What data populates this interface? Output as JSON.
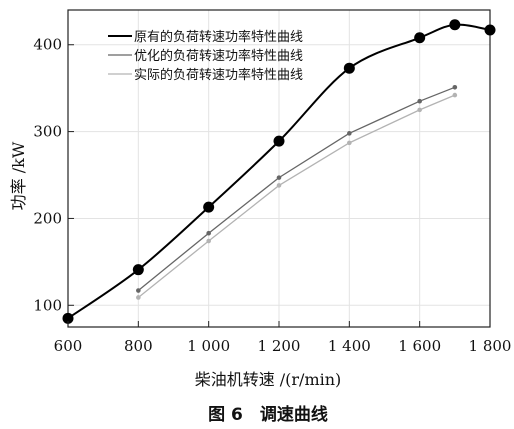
{
  "chart_data": {
    "type": "line",
    "title": "",
    "caption": "图 6　调速曲线",
    "xlabel": "柴油机转速 /(r/min)",
    "ylabel": "功率 /kW",
    "xlim": [
      600,
      1800
    ],
    "ylim": [
      75,
      440
    ],
    "x_ticks": [
      {
        "value": 600,
        "label": "600"
      },
      {
        "value": 800,
        "label": "800"
      },
      {
        "value": 1000,
        "label": "1 000"
      },
      {
        "value": 1200,
        "label": "1 200"
      },
      {
        "value": 1400,
        "label": "1 400"
      },
      {
        "value": 1600,
        "label": "1 600"
      },
      {
        "value": 1800,
        "label": "1 800"
      }
    ],
    "y_ticks": [
      {
        "value": 100,
        "label": "100"
      },
      {
        "value": 200,
        "label": "200"
      },
      {
        "value": 300,
        "label": "300"
      },
      {
        "value": 400,
        "label": "400"
      }
    ],
    "grid": true,
    "legend_position": "top-left",
    "series": [
      {
        "name": "原有的负荷转速功率特性曲线",
        "color": "#000000",
        "smooth": true,
        "marker": "large-dot",
        "x": [
          600,
          800,
          1000,
          1200,
          1400,
          1600,
          1700,
          1800
        ],
        "y": [
          85,
          141,
          213,
          289,
          373,
          408,
          423,
          417
        ]
      },
      {
        "name": "优化的负荷转速功率特性曲线",
        "color": "#666666",
        "smooth": false,
        "marker": "small-dot",
        "x": [
          800,
          1000,
          1200,
          1400,
          1600,
          1700
        ],
        "y": [
          117,
          183,
          247,
          298,
          335,
          351
        ]
      },
      {
        "name": "实际的负荷转速功率特性曲线",
        "color": "#b3b3b3",
        "smooth": false,
        "marker": "small-dot",
        "x": [
          800,
          1000,
          1200,
          1400,
          1600,
          1700
        ],
        "y": [
          109,
          174,
          238,
          287,
          325,
          342
        ]
      }
    ]
  }
}
